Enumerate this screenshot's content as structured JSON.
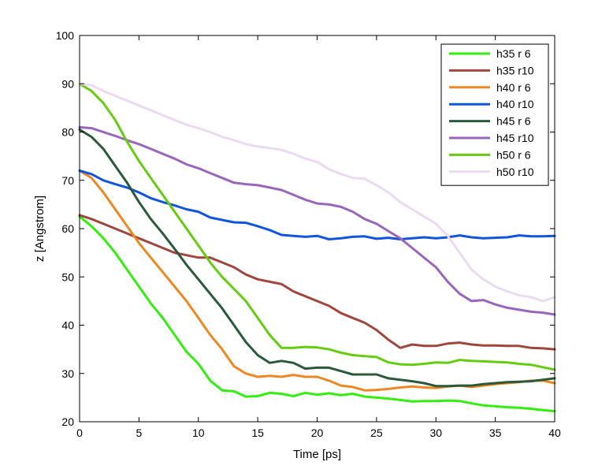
{
  "chart_data": {
    "type": "line",
    "title": "",
    "xlabel": "Time [ps]",
    "ylabel": "z [Angstrom]",
    "xlim": [
      0,
      40
    ],
    "ylim": [
      20,
      100
    ],
    "xticks": [
      0,
      5,
      10,
      15,
      20,
      25,
      30,
      35,
      40
    ],
    "yticks": [
      20,
      30,
      40,
      50,
      60,
      70,
      80,
      90,
      100
    ],
    "grid": false,
    "legend_position": "top-right",
    "x": [
      0,
      1,
      2,
      3,
      4,
      5,
      6,
      7,
      8,
      9,
      10,
      11,
      12,
      13,
      14,
      15,
      16,
      17,
      18,
      19,
      20,
      21,
      22,
      23,
      24,
      25,
      26,
      27,
      28,
      29,
      30,
      31,
      32,
      33,
      34,
      35,
      36,
      37,
      38,
      39,
      40
    ],
    "series": [
      {
        "name": "h35 r 6",
        "color": "#33ee11",
        "values": [
          62.5,
          60.5,
          58,
          55,
          51.5,
          48,
          44.5,
          41.5,
          38,
          34.5,
          32,
          28.5,
          26.5,
          26.3,
          25.2,
          25.3,
          26,
          25.8,
          25.3,
          26,
          25.6,
          25.9,
          25.5,
          25.8,
          25.2,
          25,
          24.8,
          24.5,
          24.2,
          24.3,
          24.3,
          24.4,
          24.3,
          23.8,
          23.4,
          23.2,
          23,
          22.9,
          22.7,
          22.4,
          22.2
        ]
      },
      {
        "name": "h35 r10",
        "color": "#a0463c",
        "values": [
          62.8,
          62,
          61,
          60,
          59,
          58,
          57,
          56,
          55,
          54.5,
          54,
          54,
          53,
          52,
          50.5,
          49.5,
          49,
          48.5,
          47,
          46,
          45,
          44,
          42.5,
          41.5,
          40.5,
          39,
          37,
          35.3,
          36,
          35.7,
          35.7,
          36.2,
          36.4,
          36,
          35.8,
          35.8,
          35.7,
          35.7,
          35.3,
          35.2,
          35
        ]
      },
      {
        "name": "h40 r 6",
        "color": "#ee8822",
        "values": [
          72,
          70.5,
          67.5,
          64,
          60.5,
          57,
          54,
          51,
          48,
          45,
          41.5,
          38,
          35,
          31.5,
          30,
          29.3,
          29.5,
          29.3,
          29.7,
          29.3,
          29.3,
          28.5,
          27.5,
          27.2,
          26.5,
          26.6,
          26.8,
          27.1,
          27.3,
          27.1,
          27,
          27.3,
          27.5,
          27.2,
          27.5,
          27.8,
          28,
          28.2,
          28.5,
          28.5,
          28
        ]
      },
      {
        "name": "h40 r10",
        "color": "#1155dd",
        "values": [
          72,
          71.3,
          70,
          69.2,
          68.5,
          67.5,
          66.3,
          65.5,
          64.8,
          64,
          63.5,
          62.3,
          61.8,
          61.3,
          61.2,
          60.5,
          59.7,
          58.7,
          58.5,
          58.3,
          58.5,
          57.8,
          58,
          58.3,
          58.4,
          57.9,
          58.1,
          57.8,
          58,
          58.2,
          58,
          58.2,
          58.6,
          58.2,
          58,
          58.1,
          58.2,
          58.6,
          58.4,
          58.4,
          58.5
        ]
      },
      {
        "name": "h45 r 6",
        "color": "#2a5a3a",
        "values": [
          80.5,
          79,
          76.5,
          73,
          69.5,
          65.5,
          62,
          59,
          55.8,
          52.5,
          49.5,
          46.5,
          43.5,
          40,
          36.5,
          33.8,
          32.2,
          32.6,
          32.2,
          31,
          31.2,
          31.2,
          30.5,
          29.8,
          29.8,
          29.8,
          29,
          28.7,
          28.4,
          28,
          27.4,
          27.4,
          27.5,
          27.5,
          27.8,
          28,
          28.2,
          28.3,
          28.4,
          28.7,
          29
        ]
      },
      {
        "name": "h45 r10",
        "color": "#9966bb",
        "values": [
          81,
          80.8,
          80,
          79.2,
          78.3,
          77.5,
          76.5,
          75.5,
          74.5,
          73.3,
          72.5,
          71.5,
          70.5,
          69.5,
          69.2,
          69,
          68.5,
          68,
          67,
          66,
          65.2,
          65,
          64.5,
          63.5,
          62,
          61,
          59.5,
          58,
          56,
          54,
          52,
          49,
          46.5,
          45,
          45.2,
          44.3,
          43.6,
          43.2,
          42.8,
          42.6,
          42.2
        ]
      },
      {
        "name": "h50 r 6",
        "color": "#66cc11",
        "values": [
          90,
          88.5,
          86,
          82.5,
          78,
          74,
          70.5,
          67,
          63.5,
          60,
          56.5,
          53,
          50,
          47.5,
          45,
          41.5,
          38,
          35.3,
          35.3,
          35.5,
          35.4,
          35,
          34.3,
          33.8,
          33.6,
          33.4,
          32.3,
          31.9,
          31.8,
          32,
          32.3,
          32.2,
          32.8,
          32.6,
          32.5,
          32.4,
          32.3,
          32,
          31.8,
          31.3,
          30.8
        ]
      },
      {
        "name": "h50 r10",
        "color": "#ecd9f2",
        "values": [
          90,
          89.7,
          88.5,
          87.5,
          86.5,
          85.5,
          84.5,
          83.5,
          82.5,
          81.5,
          80.8,
          80,
          79,
          78.3,
          77.5,
          77,
          76.7,
          76.3,
          75.5,
          74.5,
          73.8,
          72.3,
          71.3,
          70.5,
          70.3,
          69,
          67.5,
          65.5,
          64,
          62.5,
          61,
          58.5,
          55,
          51.5,
          49.5,
          48,
          47,
          46.2,
          45.8,
          45,
          45.8
        ]
      }
    ]
  }
}
